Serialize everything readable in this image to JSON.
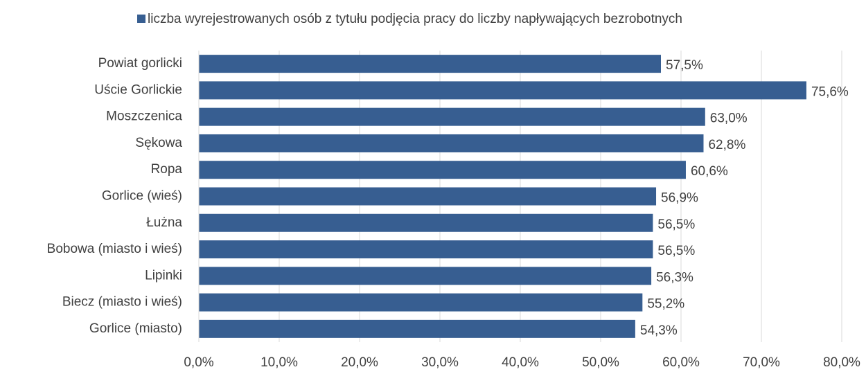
{
  "chart_data": {
    "type": "bar",
    "orientation": "horizontal",
    "categories": [
      "Powiat gorlicki",
      "Uście Gorlickie",
      "Moszczenica",
      "Sękowa",
      "Ropa",
      "Gorlice (wieś)",
      "Łużna",
      "Bobowa (miasto i wieś)",
      "Lipinki",
      "Biecz (miasto i wieś)",
      "Gorlice (miasto)"
    ],
    "series": [
      {
        "name": "liczba wyrejestrowanych osób z tytułu podjęcia pracy do liczby napływających bezrobotnych",
        "color": "#375e91",
        "values": [
          57.5,
          75.6,
          63.0,
          62.8,
          60.6,
          56.9,
          56.5,
          56.5,
          56.3,
          55.2,
          54.3
        ],
        "value_labels": [
          "57,5%",
          "75,6%",
          "63,0%",
          "62,8%",
          "60,6%",
          "56,9%",
          "56,5%",
          "56,5%",
          "56,3%",
          "55,2%",
          "54,3%"
        ]
      }
    ],
    "xlim": [
      0,
      80
    ],
    "xticks": [
      {
        "value": 0,
        "label": "0,0%"
      },
      {
        "value": 10,
        "label": "10,0%"
      },
      {
        "value": 20,
        "label": "20,0%"
      },
      {
        "value": 30,
        "label": "30,0%"
      },
      {
        "value": 40,
        "label": "40,0%"
      },
      {
        "value": 50,
        "label": "50,0%"
      },
      {
        "value": 60,
        "label": "60,0%"
      },
      {
        "value": 70,
        "label": "70,0%"
      },
      {
        "value": 80,
        "label": "80,0%"
      }
    ],
    "grid": true,
    "legend": "top"
  }
}
